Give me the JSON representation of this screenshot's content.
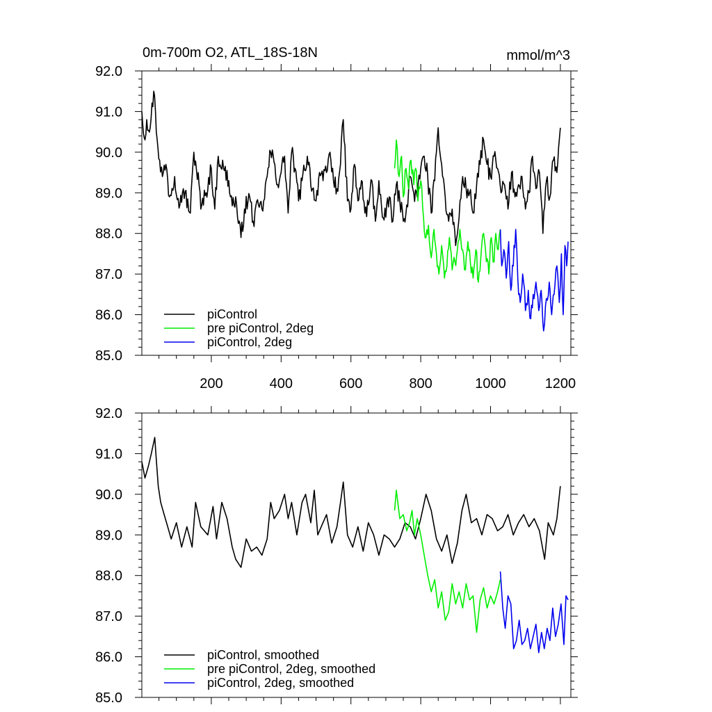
{
  "chart_data": [
    {
      "type": "line",
      "title": "0m-700m O2, ATL_18S-18N",
      "units": "mmol/m^3",
      "xlim": [
        1,
        1230
      ],
      "ylim": [
        85.0,
        92.0
      ],
      "x_ticks": [
        200,
        400,
        600,
        800,
        1000,
        1200
      ],
      "x_tick_labels": [
        "200",
        "400",
        "600",
        "800",
        "1000",
        "1200"
      ],
      "y_ticks": [
        85,
        86,
        87,
        88,
        89,
        90,
        91,
        92
      ],
      "y_tick_labels": [
        "85.0",
        "86.0",
        "87.0",
        "88.0",
        "89.0",
        "90.0",
        "91.0",
        "92.0"
      ],
      "legend_position": "bottom-left",
      "noisy": true,
      "series": [
        {
          "name": "piControl",
          "color": "#000000",
          "x": [
            1,
            10,
            15,
            25,
            35,
            40,
            45,
            52,
            60,
            70,
            80,
            95,
            110,
            120,
            140,
            150,
            165,
            170,
            185,
            200,
            210,
            220,
            235,
            250,
            255,
            265,
            270,
            275,
            285,
            295,
            310,
            320,
            335,
            345,
            350,
            360,
            370,
            382,
            390,
            400,
            410,
            420,
            430,
            440,
            450,
            460,
            475,
            490,
            500,
            510,
            520,
            530,
            540,
            550,
            560,
            570,
            578,
            590,
            600,
            610,
            620,
            630,
            640,
            650,
            660,
            670,
            680,
            690,
            700,
            710,
            720,
            730,
            740,
            750,
            760,
            770,
            780,
            790,
            800,
            810,
            820,
            830,
            840,
            850,
            860,
            870,
            880,
            890,
            900,
            910,
            920,
            930,
            940,
            950,
            960,
            970,
            980,
            990,
            1000,
            1010,
            1020,
            1030,
            1040,
            1050,
            1060,
            1070,
            1080,
            1090,
            1100,
            1110,
            1120,
            1130,
            1140,
            1150,
            1160,
            1170,
            1180,
            1190,
            1200
          ],
          "y": [
            91.0,
            90.3,
            90.8,
            90.6,
            91.5,
            91.0,
            90.3,
            89.8,
            89.4,
            89.7,
            88.9,
            89.4,
            88.7,
            89.1,
            88.5,
            90.0,
            89.2,
            88.6,
            89.0,
            89.6,
            88.6,
            89.9,
            89.6,
            89.3,
            88.9,
            88.7,
            88.9,
            88.4,
            87.9,
            88.6,
            88.9,
            88.3,
            88.7,
            88.6,
            88.8,
            89.4,
            90.0,
            89.7,
            89.2,
            89.5,
            89.9,
            88.5,
            90.0,
            89.6,
            88.8,
            89.3,
            89.9,
            89.1,
            88.8,
            89.5,
            89.3,
            89.5,
            90.0,
            89.3,
            89.1,
            89.7,
            90.8,
            88.8,
            88.6,
            89.7,
            88.8,
            89.3,
            88.5,
            88.7,
            89.3,
            88.3,
            89.3,
            88.4,
            88.4,
            88.9,
            88.3,
            89.2,
            88.8,
            88.3,
            88.7,
            89.4,
            89.0,
            88.9,
            89.6,
            89.9,
            89.4,
            88.5,
            89.3,
            90.6,
            89.7,
            88.9,
            88.3,
            88.6,
            87.7,
            88.4,
            89.4,
            89.1,
            89.0,
            88.5,
            89.2,
            89.7,
            90.3,
            89.7,
            89.4,
            89.9,
            89.6,
            89.0,
            89.2,
            88.6,
            89.5,
            88.9,
            89.2,
            89.4,
            88.6,
            89.0,
            89.9,
            89.1,
            89.5,
            88.0,
            89.3,
            88.9,
            89.8,
            89.5,
            90.6
          ]
        },
        {
          "name": "pre piControl, 2deg",
          "color": "#00ee00",
          "x": [
            725,
            730,
            738,
            745,
            750,
            758,
            765,
            772,
            780,
            785,
            792,
            800,
            808,
            815,
            822,
            830,
            838,
            845,
            852,
            860,
            868,
            875,
            882,
            890,
            898,
            905,
            912,
            920,
            928,
            935,
            942,
            950,
            958,
            965,
            972,
            980,
            988,
            995,
            1002,
            1010,
            1015,
            1022,
            1028
          ],
          "y": [
            89.6,
            90.3,
            89.4,
            89.9,
            88.9,
            89.6,
            89.1,
            89.8,
            89.2,
            89.6,
            88.8,
            89.3,
            88.4,
            87.9,
            88.2,
            87.4,
            88.1,
            87.5,
            87.0,
            87.7,
            86.9,
            87.2,
            87.9,
            87.1,
            87.3,
            87.6,
            88.1,
            87.6,
            87.1,
            87.8,
            87.3,
            86.9,
            87.6,
            86.8,
            87.4,
            88.0,
            87.3,
            87.0,
            87.9,
            87.3,
            88.0,
            87.6,
            88.1
          ]
        },
        {
          "name": "piControl, 2deg",
          "color": "#0000ee",
          "x": [
            1028,
            1032,
            1038,
            1045,
            1052,
            1058,
            1065,
            1072,
            1078,
            1085,
            1092,
            1100,
            1108,
            1115,
            1122,
            1130,
            1138,
            1145,
            1152,
            1160,
            1168,
            1175,
            1182,
            1190,
            1197,
            1203,
            1208,
            1213,
            1218,
            1222
          ],
          "y": [
            88.1,
            87.2,
            87.6,
            86.9,
            87.8,
            86.6,
            87.2,
            88.1,
            86.9,
            86.3,
            87.0,
            86.1,
            86.6,
            85.9,
            86.5,
            86.8,
            86.1,
            86.6,
            85.6,
            86.4,
            86.8,
            86.0,
            86.5,
            87.2,
            86.3,
            87.5,
            86.0,
            87.7,
            87.2,
            87.8
          ]
        }
      ]
    },
    {
      "type": "line",
      "xlim": [
        1,
        1230
      ],
      "ylim": [
        85.0,
        92.0
      ],
      "x_ticks": [
        200,
        400,
        600,
        800,
        1000,
        1200
      ],
      "y_ticks": [
        85,
        86,
        87,
        88,
        89,
        90,
        91,
        92
      ],
      "y_tick_labels": [
        "85.0",
        "86.0",
        "87.0",
        "88.0",
        "89.0",
        "90.0",
        "91.0",
        "92.0"
      ],
      "legend_position": "bottom-left",
      "noisy": false,
      "series": [
        {
          "name": "piControl, smoothed",
          "color": "#000000",
          "x": [
            1,
            10,
            20,
            28,
            38,
            42,
            48,
            55,
            65,
            75,
            85,
            100,
            115,
            130,
            145,
            155,
            170,
            190,
            205,
            215,
            230,
            245,
            260,
            270,
            285,
            300,
            315,
            330,
            345,
            360,
            370,
            380,
            395,
            410,
            420,
            430,
            445,
            460,
            470,
            485,
            495,
            505,
            515,
            530,
            545,
            560,
            570,
            578,
            590,
            605,
            620,
            635,
            650,
            665,
            680,
            695,
            710,
            725,
            740,
            755,
            770,
            785,
            800,
            815,
            830,
            845,
            860,
            875,
            890,
            905,
            918,
            930,
            945,
            960,
            975,
            990,
            1005,
            1020,
            1035,
            1050,
            1065,
            1080,
            1095,
            1110,
            1125,
            1140,
            1155,
            1165,
            1180,
            1190,
            1200
          ],
          "y": [
            90.8,
            90.4,
            90.7,
            91.0,
            91.4,
            90.9,
            90.2,
            89.8,
            89.5,
            89.2,
            88.9,
            89.3,
            88.7,
            89.2,
            88.7,
            89.8,
            89.2,
            89.0,
            89.7,
            88.9,
            89.8,
            89.4,
            88.7,
            88.4,
            88.2,
            88.9,
            88.6,
            88.7,
            88.5,
            88.9,
            89.8,
            89.4,
            89.6,
            90.0,
            89.4,
            89.8,
            89.0,
            89.8,
            90.0,
            89.3,
            90.1,
            89.0,
            89.2,
            89.5,
            88.8,
            89.2,
            89.8,
            90.3,
            89.0,
            88.7,
            89.2,
            88.6,
            89.3,
            89.0,
            88.5,
            89.0,
            88.9,
            88.7,
            88.9,
            89.3,
            89.2,
            88.9,
            89.4,
            90.0,
            89.6,
            88.9,
            88.6,
            89.0,
            88.3,
            88.8,
            89.6,
            90.0,
            89.3,
            89.4,
            89.0,
            89.5,
            89.4,
            89.1,
            89.2,
            89.5,
            89.0,
            89.3,
            89.5,
            89.2,
            89.4,
            89.1,
            88.4,
            89.3,
            89.0,
            89.4,
            90.2
          ]
        },
        {
          "name": "pre piControl, 2deg, smoothed",
          "color": "#00ee00",
          "x": [
            725,
            730,
            740,
            750,
            760,
            768,
            775,
            782,
            790,
            800,
            810,
            820,
            830,
            840,
            850,
            860,
            870,
            880,
            890,
            900,
            910,
            920,
            930,
            940,
            950,
            960,
            970,
            980,
            990,
            1000,
            1010,
            1020,
            1028
          ],
          "y": [
            89.6,
            90.1,
            89.4,
            89.5,
            89.1,
            89.3,
            89.6,
            89.0,
            89.4,
            89.0,
            88.5,
            88.0,
            87.6,
            87.9,
            87.2,
            87.6,
            86.9,
            87.1,
            87.8,
            87.3,
            87.6,
            87.2,
            87.8,
            87.4,
            87.5,
            86.6,
            87.4,
            87.7,
            87.2,
            87.5,
            87.3,
            87.6,
            87.9
          ]
        },
        {
          "name": "piControl, 2deg, smoothed",
          "color": "#0000ee",
          "x": [
            1028,
            1035,
            1042,
            1050,
            1058,
            1066,
            1074,
            1082,
            1090,
            1098,
            1106,
            1114,
            1122,
            1130,
            1138,
            1146,
            1154,
            1162,
            1170,
            1178,
            1186,
            1194,
            1202,
            1210,
            1216,
            1222
          ],
          "y": [
            88.1,
            87.2,
            86.7,
            87.5,
            87.3,
            86.2,
            86.4,
            86.9,
            86.3,
            86.4,
            86.7,
            86.2,
            86.5,
            86.8,
            86.1,
            86.6,
            86.2,
            86.7,
            86.4,
            87.2,
            86.5,
            86.8,
            87.3,
            86.3,
            87.5,
            87.4
          ]
        }
      ]
    }
  ]
}
